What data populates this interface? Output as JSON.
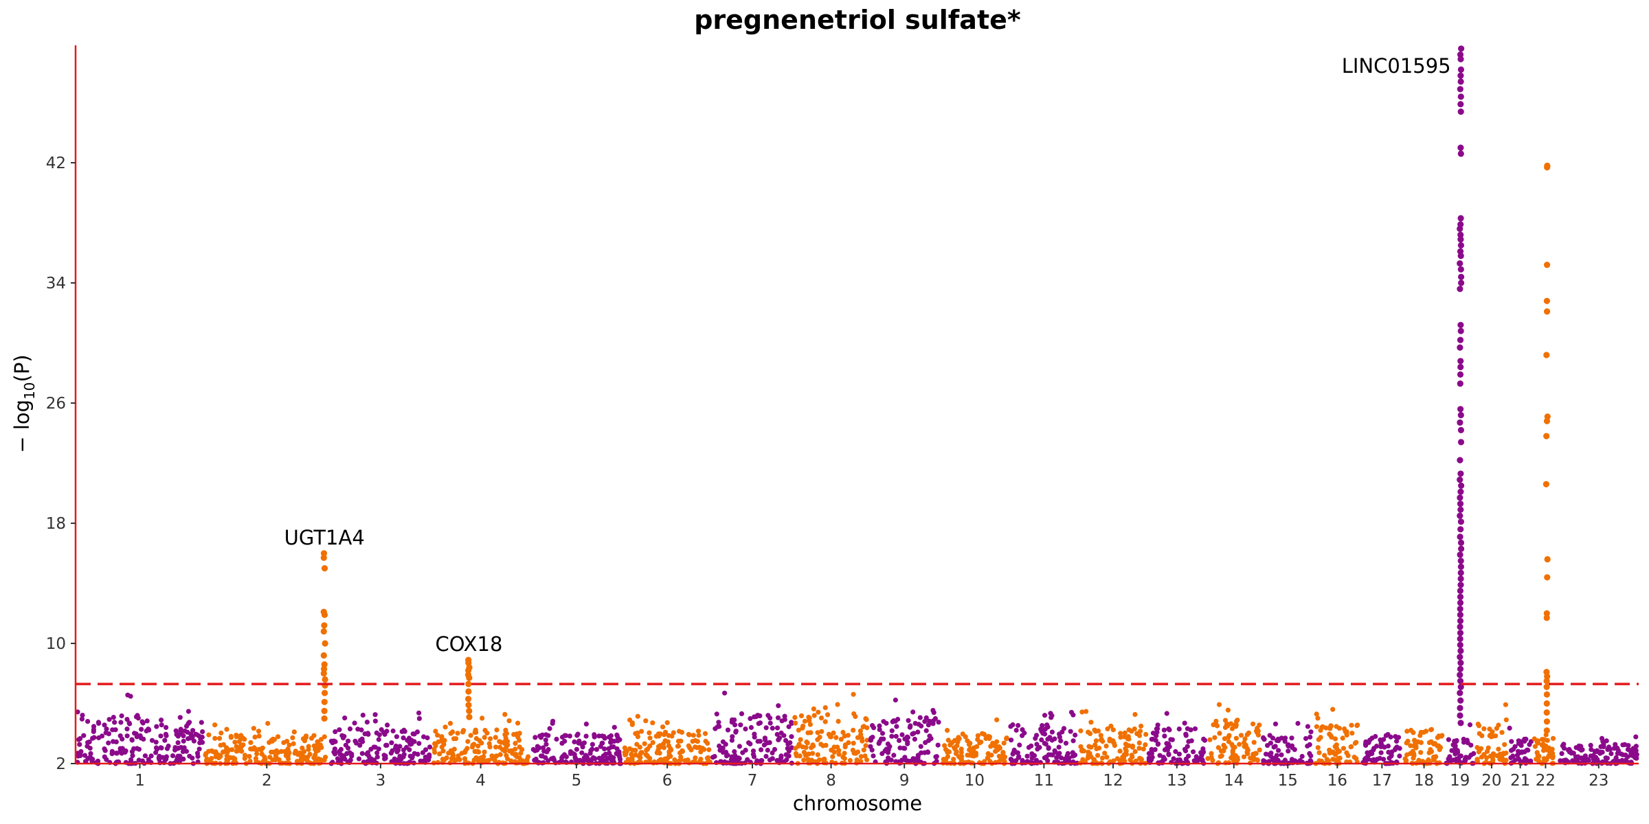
{
  "chart_data": {
    "type": "scatter",
    "title": "pregnenetriol sulfate*",
    "xlabel": "chromosome",
    "ylabel": "−log10(P)",
    "ylabel_parts": {
      "prefix": "− log",
      "sub": "10",
      "suffix": "(P)"
    },
    "ylim": [
      2,
      50
    ],
    "yticks": [
      2,
      10,
      18,
      26,
      34,
      42
    ],
    "significance_threshold": 7.3,
    "threshold_style": "dashed red line",
    "colors": {
      "odd_chromosomes": "#8b0a8b",
      "even_chromosomes": "#f07000",
      "threshold": "#e31a1c",
      "axis": "#e31a1c"
    },
    "chromosomes": [
      {
        "label": "1",
        "size": 249,
        "color": "#8b0a8b",
        "background_max": 6.8
      },
      {
        "label": "2",
        "size": 243,
        "color": "#f07000",
        "background_max": 4.8
      },
      {
        "label": "3",
        "size": 198,
        "color": "#8b0a8b",
        "background_max": 5.4
      },
      {
        "label": "4",
        "size": 190,
        "color": "#f07000",
        "background_max": 5.3
      },
      {
        "label": "5",
        "size": 181,
        "color": "#8b0a8b",
        "background_max": 4.9
      },
      {
        "label": "6",
        "size": 171,
        "color": "#f07000",
        "background_max": 5.2
      },
      {
        "label": "7",
        "size": 159,
        "color": "#8b0a8b",
        "background_max": 6.9
      },
      {
        "label": "8",
        "size": 146,
        "color": "#f07000",
        "background_max": 6.9
      },
      {
        "label": "9",
        "size": 138,
        "color": "#8b0a8b",
        "background_max": 6.5
      },
      {
        "label": "10",
        "size": 134,
        "color": "#f07000",
        "background_max": 5.1
      },
      {
        "label": "11",
        "size": 135,
        "color": "#8b0a8b",
        "background_max": 5.8
      },
      {
        "label": "12",
        "size": 133,
        "color": "#f07000",
        "background_max": 5.5
      },
      {
        "label": "13",
        "size": 114,
        "color": "#8b0a8b",
        "background_max": 5.5
      },
      {
        "label": "14",
        "size": 107,
        "color": "#f07000",
        "background_max": 6.3
      },
      {
        "label": "15",
        "size": 102,
        "color": "#8b0a8b",
        "background_max": 4.8
      },
      {
        "label": "16",
        "size": 90,
        "color": "#f07000",
        "background_max": 5.8
      },
      {
        "label": "17",
        "size": 83,
        "color": "#8b0a8b",
        "background_max": 4.7
      },
      {
        "label": "18",
        "size": 80,
        "color": "#f07000",
        "background_max": 5.6
      },
      {
        "label": "19",
        "size": 59,
        "color": "#8b0a8b",
        "background_max": 5.0
      },
      {
        "label": "20",
        "size": 64,
        "color": "#f07000",
        "background_max": 6.0
      },
      {
        "label": "21",
        "size": 47,
        "color": "#8b0a8b",
        "background_max": 4.6
      },
      {
        "label": "22",
        "size": 51,
        "color": "#f07000",
        "background_max": 4.6
      },
      {
        "label": "23",
        "size": 155,
        "color": "#8b0a8b",
        "background_max": 3.9
      }
    ],
    "peaks": [
      {
        "chromosome": "2",
        "position": 0.96,
        "gene": "UGT1A4",
        "values": [
          16.0,
          15.7,
          15.0,
          12.1,
          11.9,
          11.2,
          10.8,
          10.0,
          9.2,
          8.6,
          8.3,
          8.0,
          7.6,
          7.2,
          6.7,
          6.1,
          5.5,
          5.0
        ]
      },
      {
        "chromosome": "4",
        "position": 0.38,
        "gene": "COX18",
        "values": [
          8.9,
          8.7,
          8.4,
          8.2,
          7.9,
          7.7,
          7.3,
          6.8,
          6.3,
          5.9,
          5.5,
          5.1
        ]
      },
      {
        "chromosome": "19",
        "position": 0.52,
        "gene": "LINC01595",
        "values": [
          49.6,
          49.2,
          48.9,
          48.2,
          47.8,
          47.4,
          46.9,
          46.4,
          45.9,
          45.4,
          43.0,
          42.6,
          38.3,
          37.9,
          37.6,
          37.2,
          36.9,
          36.5,
          36.1,
          35.8,
          35.3,
          34.9,
          34.4,
          34.0,
          33.6,
          31.2,
          30.8,
          30.2,
          29.7,
          28.8,
          28.4,
          27.9,
          27.3,
          25.6,
          25.2,
          24.7,
          24.2,
          23.4,
          22.2,
          21.3,
          20.9,
          20.5,
          20.1,
          19.7,
          19.3,
          18.9,
          18.5,
          18.1,
          17.6,
          17.1,
          16.7,
          16.3,
          15.9,
          15.5,
          15.1,
          14.7,
          14.3,
          13.9,
          13.5,
          13.1,
          12.7,
          12.3,
          11.9,
          11.5,
          11.1,
          10.7,
          10.3,
          9.9,
          9.5,
          9.1,
          8.7,
          8.3,
          7.9,
          7.5,
          7.1,
          6.7,
          6.2,
          5.7,
          5.2,
          4.7
        ]
      },
      {
        "chromosome": "22",
        "position": 0.55,
        "gene": "",
        "values": [
          41.8,
          41.7,
          35.2,
          32.8,
          32.1,
          29.2,
          25.1,
          24.8,
          23.8,
          20.6,
          15.6,
          14.4,
          12.0,
          11.7,
          8.1,
          7.8,
          7.5,
          7.1,
          6.6,
          6.0,
          5.4,
          4.8,
          4.2
        ]
      }
    ]
  }
}
